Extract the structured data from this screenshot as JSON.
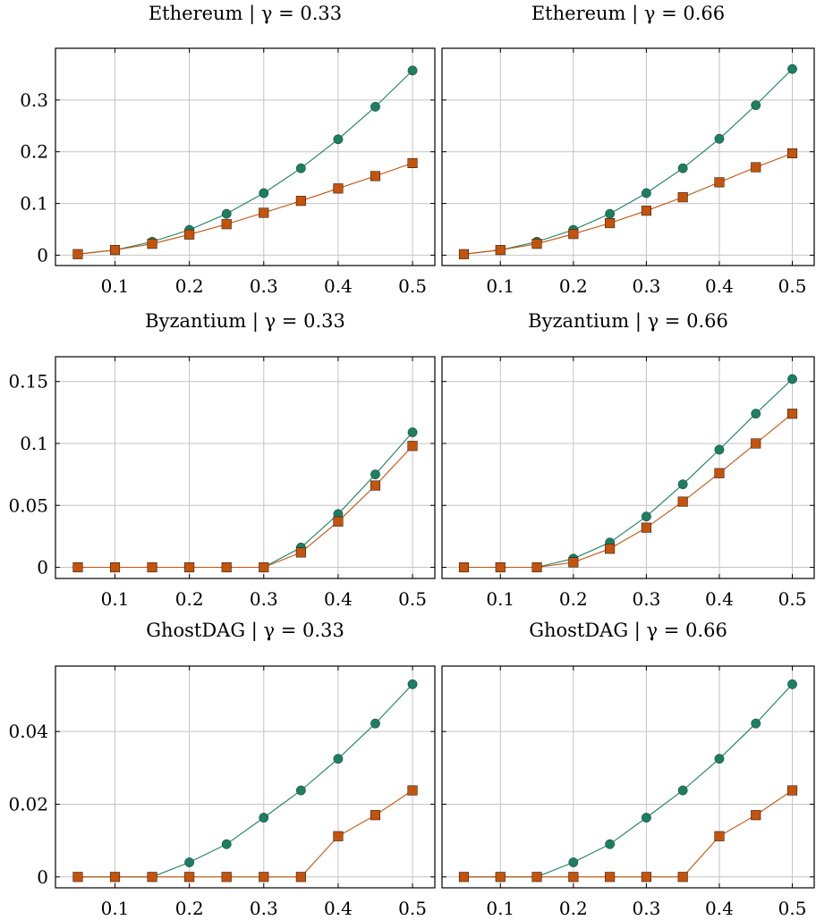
{
  "colors": {
    "series_1": "#1b7f62",
    "series_2": "#c4530c",
    "grid": "#c4c4c4"
  },
  "chart_data": [
    {
      "type": "line",
      "title": "Ethereum | γ = 0.33",
      "x": [
        0.05,
        0.1,
        0.15,
        0.2,
        0.25,
        0.3,
        0.35,
        0.4,
        0.45,
        0.5
      ],
      "xticks": [
        "0.1",
        "0.2",
        "0.3",
        "0.4",
        "0.5"
      ],
      "yticks": [
        "0",
        "0.1",
        "0.2",
        "0.3"
      ],
      "xlim": [
        0.02,
        0.53
      ],
      "ylim": [
        -0.02,
        0.4
      ],
      "grid": true,
      "series": [
        {
          "marker": "circle",
          "values": [
            0.002,
            0.01,
            0.026,
            0.049,
            0.08,
            0.12,
            0.168,
            0.224,
            0.287,
            0.357
          ]
        },
        {
          "marker": "square",
          "values": [
            0.002,
            0.01,
            0.022,
            0.04,
            0.06,
            0.082,
            0.105,
            0.129,
            0.153,
            0.178
          ]
        }
      ]
    },
    {
      "type": "line",
      "title": "Ethereum | γ = 0.66",
      "x": [
        0.05,
        0.1,
        0.15,
        0.2,
        0.25,
        0.3,
        0.35,
        0.4,
        0.45,
        0.5
      ],
      "xticks": [
        "0.1",
        "0.2",
        "0.3",
        "0.4",
        "0.5"
      ],
      "yticks": [],
      "xlim": [
        0.02,
        0.53
      ],
      "ylim": [
        -0.02,
        0.4
      ],
      "grid": true,
      "series": [
        {
          "marker": "circle",
          "values": [
            0.002,
            0.01,
            0.026,
            0.049,
            0.08,
            0.12,
            0.168,
            0.225,
            0.29,
            0.36
          ]
        },
        {
          "marker": "square",
          "values": [
            0.002,
            0.01,
            0.022,
            0.041,
            0.062,
            0.086,
            0.112,
            0.141,
            0.17,
            0.197
          ]
        }
      ]
    },
    {
      "type": "line",
      "title": "Byzantium | γ = 0.33",
      "x": [
        0.05,
        0.1,
        0.15,
        0.2,
        0.25,
        0.3,
        0.35,
        0.4,
        0.45,
        0.5
      ],
      "xticks": [
        "0.1",
        "0.2",
        "0.3",
        "0.4",
        "0.5"
      ],
      "yticks": [
        "0",
        "0.05",
        "0.1",
        "0.15"
      ],
      "xlim": [
        0.02,
        0.53
      ],
      "ylim": [
        -0.009,
        0.17
      ],
      "grid": true,
      "series": [
        {
          "marker": "circle",
          "values": [
            0,
            0,
            0,
            0,
            0,
            0,
            0.016,
            0.043,
            0.075,
            0.109
          ]
        },
        {
          "marker": "square",
          "values": [
            0,
            0,
            0,
            0,
            0,
            0,
            0.012,
            0.037,
            0.066,
            0.098
          ]
        }
      ]
    },
    {
      "type": "line",
      "title": "Byzantium | γ = 0.66",
      "x": [
        0.05,
        0.1,
        0.15,
        0.2,
        0.25,
        0.3,
        0.35,
        0.4,
        0.45,
        0.5
      ],
      "xticks": [
        "0.1",
        "0.2",
        "0.3",
        "0.4",
        "0.5"
      ],
      "yticks": [],
      "xlim": [
        0.02,
        0.53
      ],
      "ylim": [
        -0.009,
        0.17
      ],
      "grid": true,
      "series": [
        {
          "marker": "circle",
          "values": [
            0,
            0,
            0,
            0.007,
            0.02,
            0.041,
            0.067,
            0.095,
            0.124,
            0.152
          ]
        },
        {
          "marker": "square",
          "values": [
            0,
            0,
            0,
            0.004,
            0.015,
            0.032,
            0.053,
            0.076,
            0.1,
            0.124
          ]
        }
      ]
    },
    {
      "type": "line",
      "title": "GhostDAG | γ = 0.33",
      "x": [
        0.05,
        0.1,
        0.15,
        0.2,
        0.25,
        0.3,
        0.35,
        0.4,
        0.45,
        0.5
      ],
      "xticks": [
        "0.1",
        "0.2",
        "0.3",
        "0.4",
        "0.5"
      ],
      "yticks": [
        "0",
        "0.02",
        "0.04"
      ],
      "xlim": [
        0.02,
        0.53
      ],
      "ylim": [
        -0.003,
        0.058
      ],
      "grid": true,
      "series": [
        {
          "marker": "circle",
          "values": [
            0,
            0,
            0,
            0.004,
            0.009,
            0.0163,
            0.0238,
            0.0325,
            0.0422,
            0.053
          ]
        },
        {
          "marker": "square",
          "values": [
            0,
            0,
            0,
            0,
            0,
            0,
            0,
            0.0112,
            0.017,
            0.0238
          ]
        }
      ]
    },
    {
      "type": "line",
      "title": "GhostDAG | γ = 0.66",
      "x": [
        0.05,
        0.1,
        0.15,
        0.2,
        0.25,
        0.3,
        0.35,
        0.4,
        0.45,
        0.5
      ],
      "xticks": [
        "0.1",
        "0.2",
        "0.3",
        "0.4",
        "0.5"
      ],
      "yticks": [],
      "xlim": [
        0.02,
        0.53
      ],
      "ylim": [
        -0.003,
        0.058
      ],
      "grid": true,
      "series": [
        {
          "marker": "circle",
          "values": [
            0,
            0,
            0,
            0.004,
            0.009,
            0.0163,
            0.0238,
            0.0325,
            0.0422,
            0.053
          ]
        },
        {
          "marker": "square",
          "values": [
            0,
            0,
            0,
            0,
            0,
            0,
            0,
            0.0112,
            0.017,
            0.0238
          ]
        }
      ]
    }
  ]
}
